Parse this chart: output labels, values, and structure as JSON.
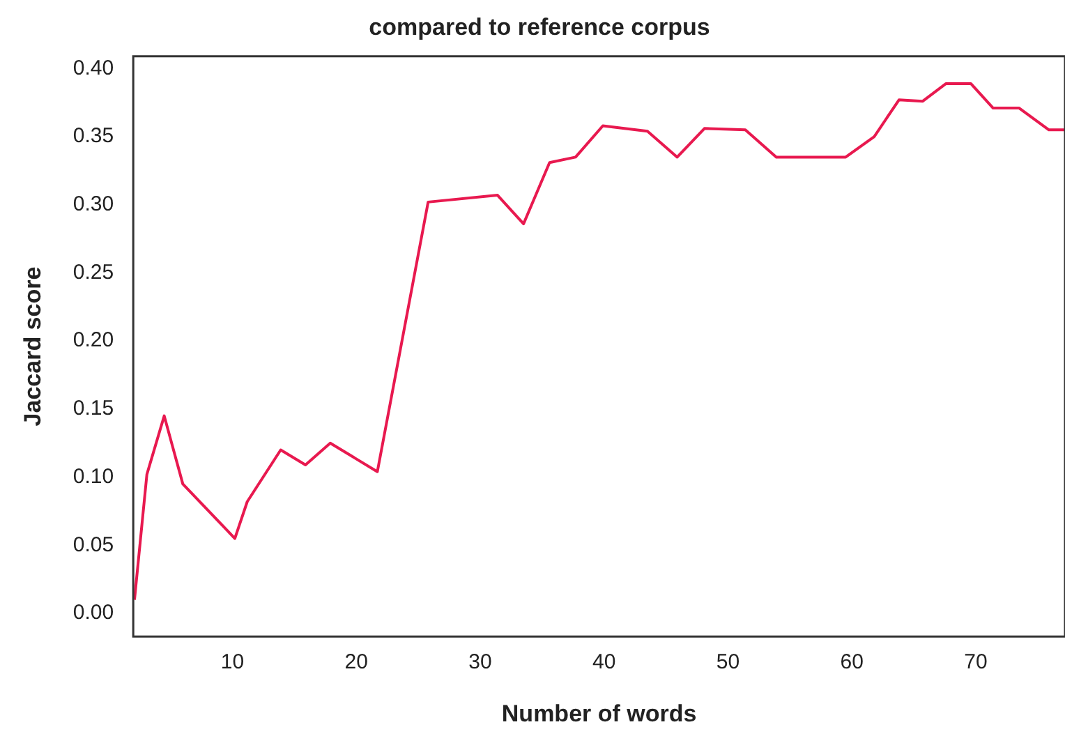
{
  "chart_data": {
    "type": "line",
    "title": "compared to reference corpus",
    "xlabel": "Number of words",
    "ylabel": "Jaccard score",
    "x": [
      2.1,
      3.1,
      4.5,
      6,
      10.2,
      11.2,
      13.9,
      15.9,
      17.9,
      21.7,
      25.8,
      31.4,
      33.5,
      35.6,
      37.7,
      39.9,
      43.5,
      45.9,
      48.1,
      51.4,
      53.9,
      59.5,
      61.8,
      63.8,
      65.7,
      67.6,
      69.6,
      71.4,
      73.5,
      75.9,
      77.2
    ],
    "series": [
      {
        "color": "#e8194f",
        "values": [
          0.01,
          0.102,
          0.145,
          0.095,
          0.055,
          0.082,
          0.12,
          0.109,
          0.125,
          0.104,
          0.302,
          0.307,
          0.286,
          0.331,
          0.335,
          0.358,
          0.354,
          0.335,
          0.356,
          0.355,
          0.335,
          0.335,
          0.35,
          0.377,
          0.376,
          0.389,
          0.389,
          0.371,
          0.371,
          0.355,
          0.355
        ]
      }
    ],
    "xlim": [
      2,
      77.2
    ],
    "xticks": [
      10,
      20,
      30,
      40,
      50,
      60,
      70
    ],
    "ylim": [
      -0.017,
      0.409
    ],
    "yticks": [
      {
        "value": 0,
        "label": "0.00"
      },
      {
        "value": 0.05,
        "label": "0.05"
      },
      {
        "value": 0.1,
        "label": "0.10"
      },
      {
        "value": 0.15,
        "label": "0.15"
      },
      {
        "value": 0.2,
        "label": "0.20"
      },
      {
        "value": 0.25,
        "label": "0.25"
      },
      {
        "value": 0.3,
        "label": "0.30"
      },
      {
        "value": 0.35,
        "label": "0.35"
      },
      {
        "value": 0.4,
        "label": "0.40"
      }
    ],
    "grid": false,
    "legend": false,
    "marker": "none",
    "line_style": "solid"
  }
}
